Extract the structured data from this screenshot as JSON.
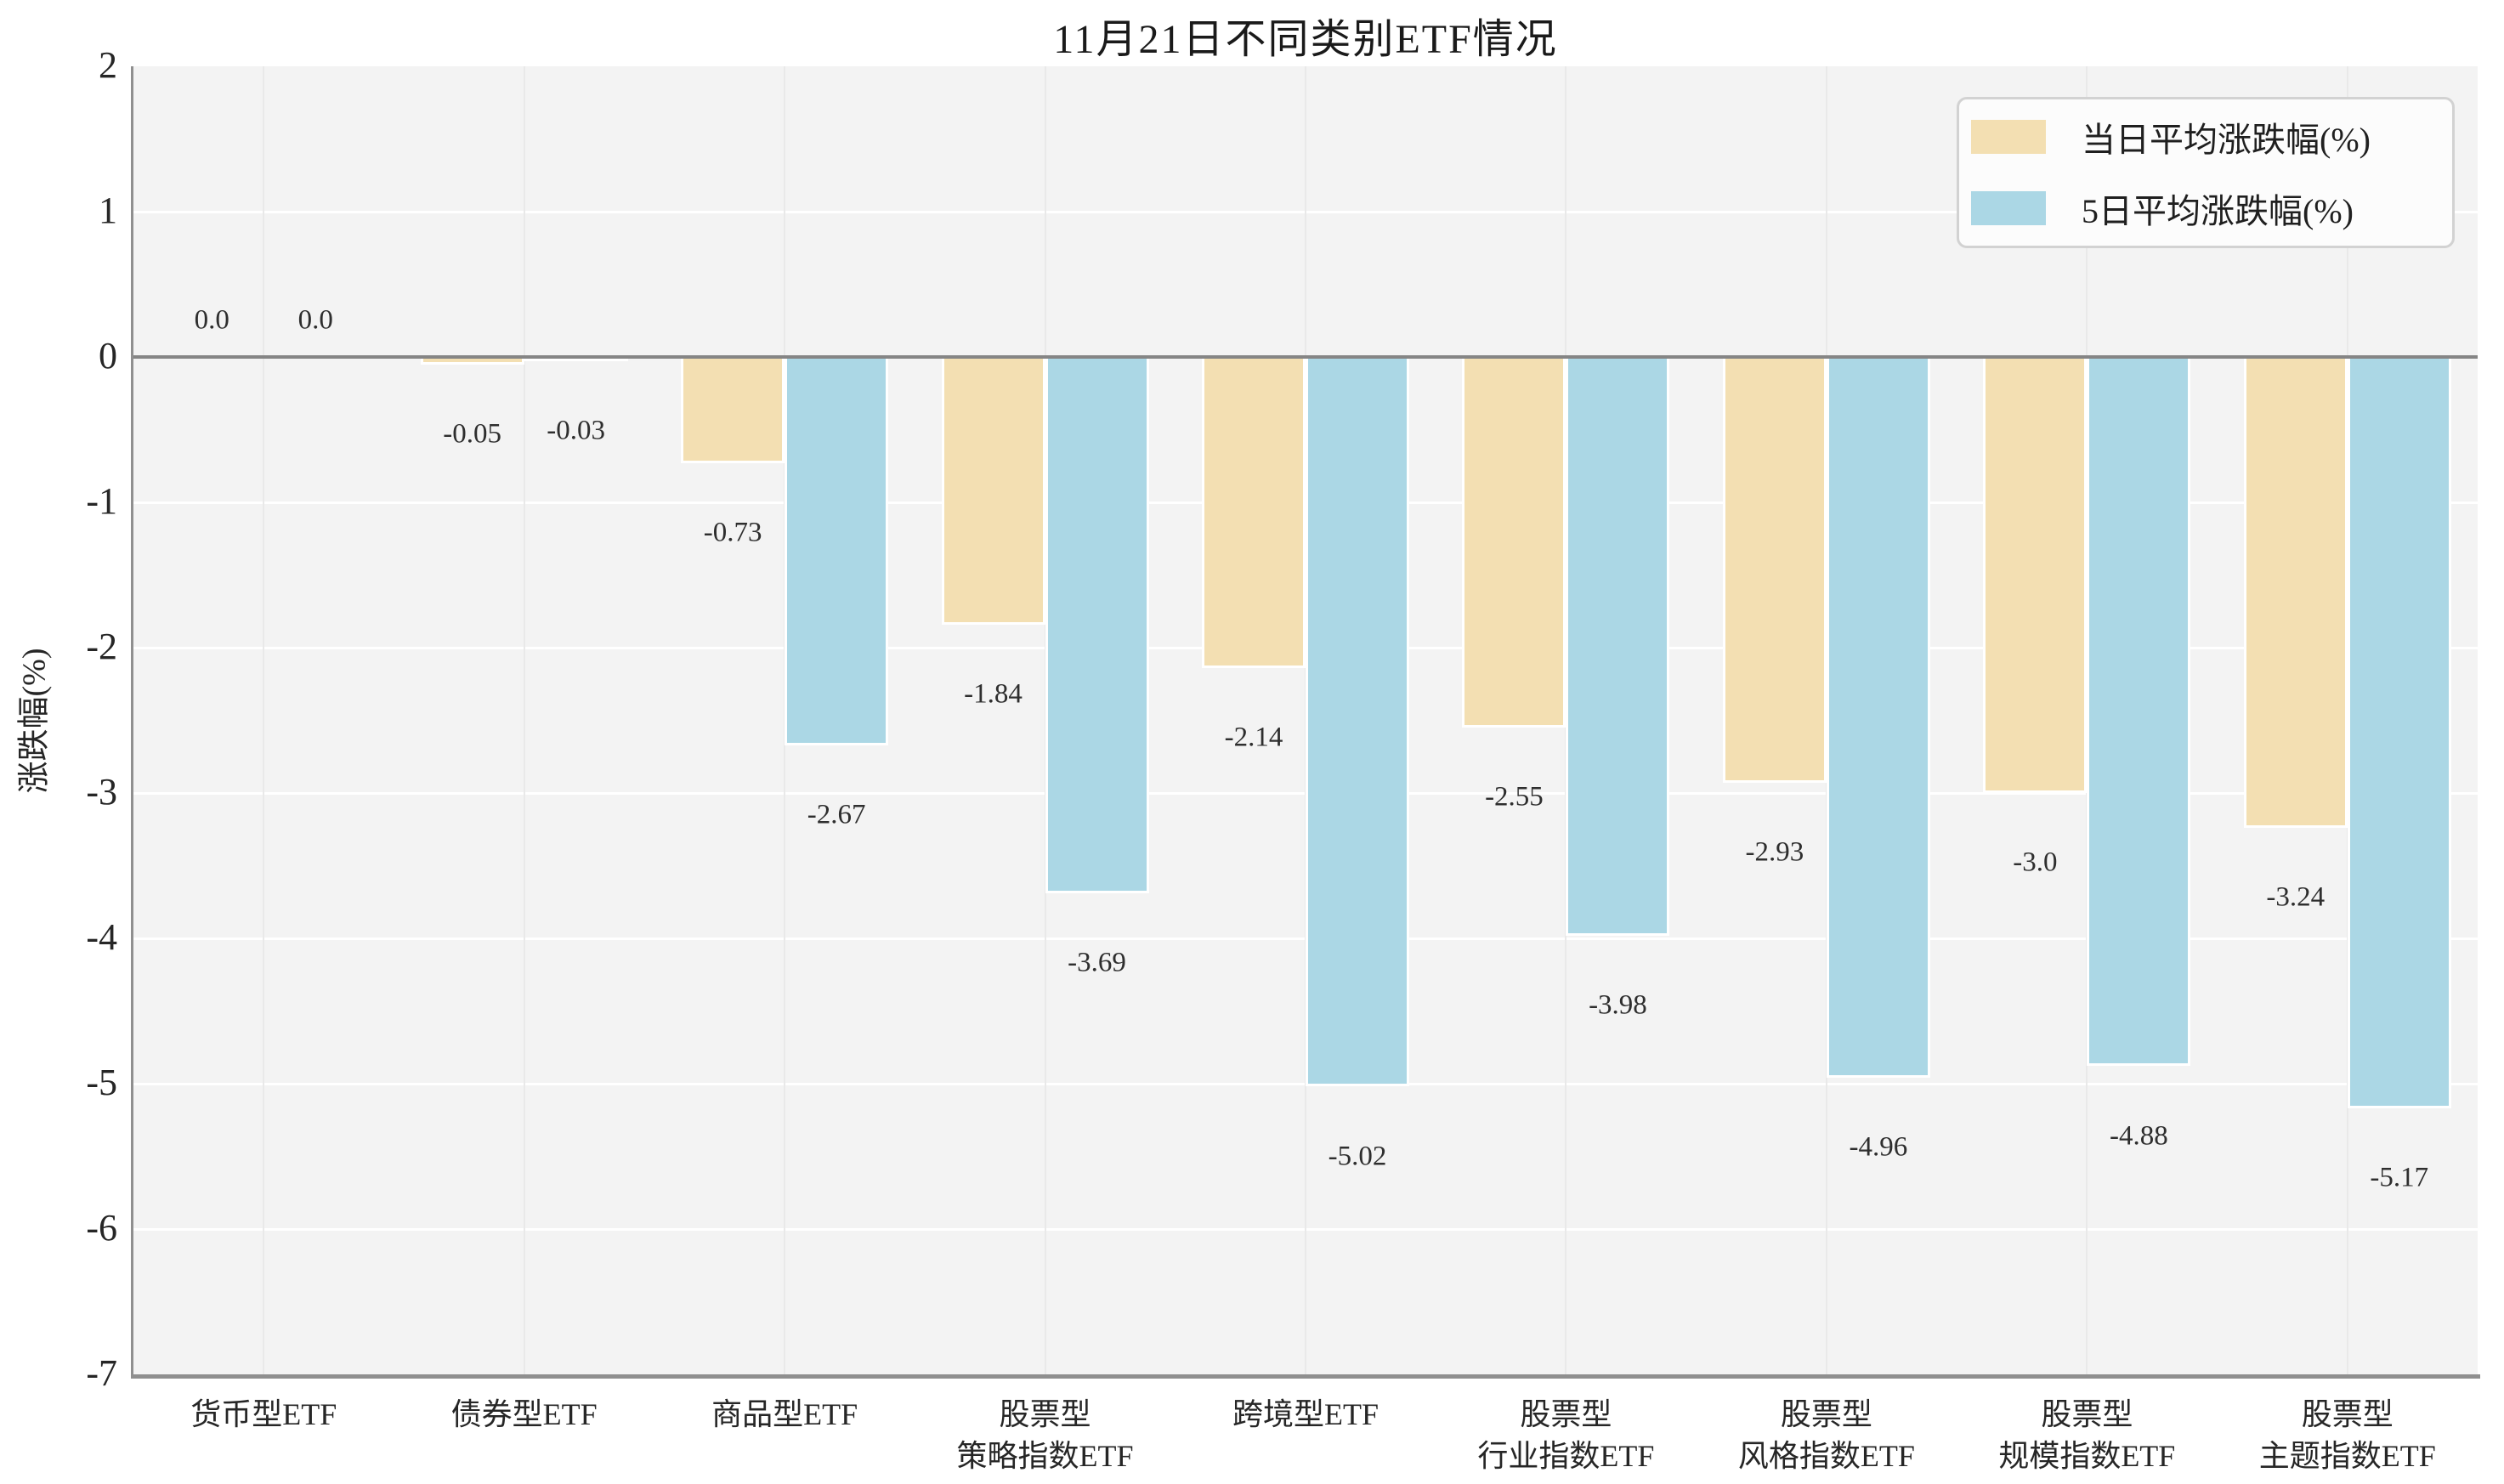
{
  "figure": {
    "title": "11月21日不同类别ETF情况"
  },
  "axes": {
    "ylabel": "涨跌幅(%)",
    "yticks": [
      "2",
      "1",
      "0",
      "-1",
      "-2",
      "-3",
      "-4",
      "-5",
      "-6",
      "-7"
    ]
  },
  "legend": {
    "items": [
      {
        "label": "当日平均涨跌幅(%)",
        "color": "#f3dfb2"
      },
      {
        "label": "5日平均涨跌幅(%)",
        "color": "#abd7e5"
      }
    ]
  },
  "colors": {
    "series_day": "#f3dfb2",
    "series_5day": "#abd7e5",
    "plot_background": "#f3f3f3",
    "grid_horizontal": "#ffffff",
    "grid_vertical": "#e9e9e9",
    "zero_line": "#858585",
    "spine": "#8f8f8f",
    "text": "#262626"
  },
  "chart_data": {
    "type": "bar",
    "title": "11月21日不同类别ETF情况",
    "xlabel": "",
    "ylabel": "涨跌幅(%)",
    "ylim": [
      -7,
      2
    ],
    "grid": true,
    "legend_position": "upper right",
    "categories": [
      "货币型ETF",
      "债券型ETF",
      "商品型ETF",
      "股票型\n策略指数ETF",
      "跨境型ETF",
      "股票型\n行业指数ETF",
      "股票型\n风格指数ETF",
      "股票型\n规模指数ETF",
      "股票型\n主题指数ETF"
    ],
    "series": [
      {
        "name": "当日平均涨跌幅(%)",
        "color": "#f3dfb2",
        "values": [
          0.0,
          -0.05,
          -0.73,
          -1.84,
          -2.14,
          -2.55,
          -2.93,
          -3.0,
          -3.24
        ],
        "labels": [
          "0.0",
          "-0.05",
          "-0.73",
          "-1.84",
          "-2.14",
          "-2.55",
          "-2.93",
          "-3.0",
          "-3.24"
        ]
      },
      {
        "name": "5日平均涨跌幅(%)",
        "color": "#abd7e5",
        "values": [
          0.0,
          -0.03,
          -2.67,
          -3.69,
          -5.02,
          -3.98,
          -4.96,
          -4.88,
          -5.17
        ],
        "labels": [
          "0.0",
          "-0.03",
          "-2.67",
          "-3.69",
          "-5.02",
          "-3.98",
          "-4.96",
          "-4.88",
          "-5.17"
        ]
      }
    ]
  }
}
